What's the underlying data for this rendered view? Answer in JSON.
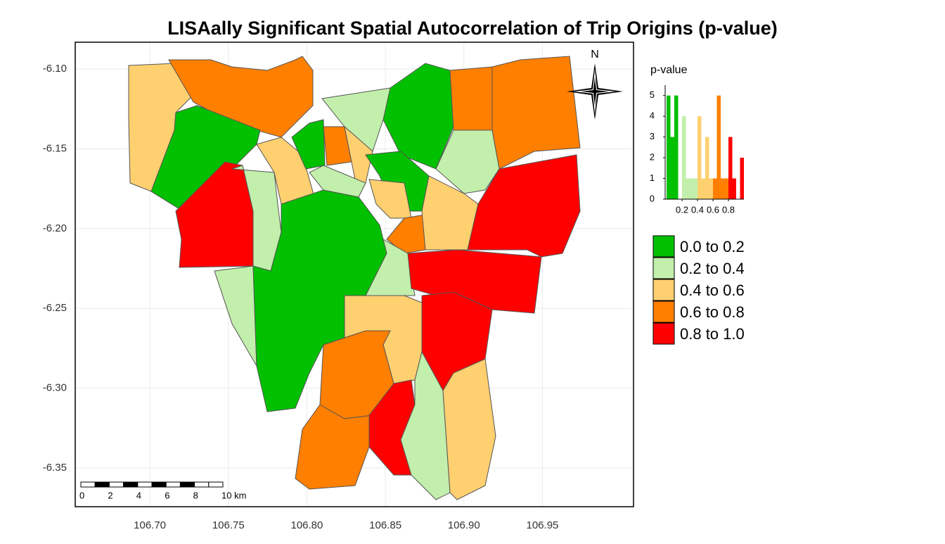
{
  "title": "LISAally Significant Spatial Autocorrelation of Trip Origins (p-value)",
  "map": {
    "xlim": [
      106.6525,
      107.008
    ],
    "ylim": [
      -6.3743,
      -6.0832
    ],
    "xticks": [
      {
        "value": 106.7,
        "label": "106.70"
      },
      {
        "value": 106.75,
        "label": "106.75"
      },
      {
        "value": 106.8,
        "label": "106.80"
      },
      {
        "value": 106.85,
        "label": "106.85"
      },
      {
        "value": 106.9,
        "label": "106.90"
      },
      {
        "value": 106.95,
        "label": "106.95"
      }
    ],
    "yticks": [
      {
        "value": -6.1,
        "label": "-6.10"
      },
      {
        "value": -6.15,
        "label": "-6.15"
      },
      {
        "value": -6.2,
        "label": "-6.20"
      },
      {
        "value": -6.25,
        "label": "-6.25"
      },
      {
        "value": -6.3,
        "label": "-6.30"
      },
      {
        "value": -6.35,
        "label": "-6.35"
      }
    ],
    "grid": true
  },
  "north_label": "N",
  "scale_bar": {
    "labels": [
      "0",
      "2",
      "4",
      "6",
      "8",
      "10 km"
    ]
  },
  "legend": {
    "title": "p-value",
    "items": [
      {
        "label": "0.0 to 0.2",
        "color": "#00c000"
      },
      {
        "label": "0.2 to 0.4",
        "color": "#c2efab"
      },
      {
        "label": "0.4 to 0.6",
        "color": "#ffd070"
      },
      {
        "label": "0.6 to 0.8",
        "color": "#ff7f00"
      },
      {
        "label": "0.8 to 1.0",
        "color": "#ff0000"
      }
    ]
  },
  "chart_data": {
    "type": "histogram",
    "bins": [
      0,
      0.05,
      0.1,
      0.15,
      0.2,
      0.25,
      0.3,
      0.35,
      0.4,
      0.45,
      0.5,
      0.55,
      0.6,
      0.65,
      0.7,
      0.75,
      0.8,
      0.85,
      0.9,
      0.95,
      1.0
    ],
    "values": [
      5,
      3,
      5,
      0,
      4,
      1,
      1,
      1,
      4,
      1,
      3,
      1,
      1,
      5,
      1,
      1,
      3,
      1,
      0,
      2
    ],
    "xlim": [
      0,
      1
    ],
    "xticks": [
      0.2,
      0.4,
      0.6,
      0.8
    ],
    "ylim": [
      0,
      5.5
    ],
    "yticks": [
      0,
      1,
      2,
      3,
      4,
      5
    ]
  }
}
